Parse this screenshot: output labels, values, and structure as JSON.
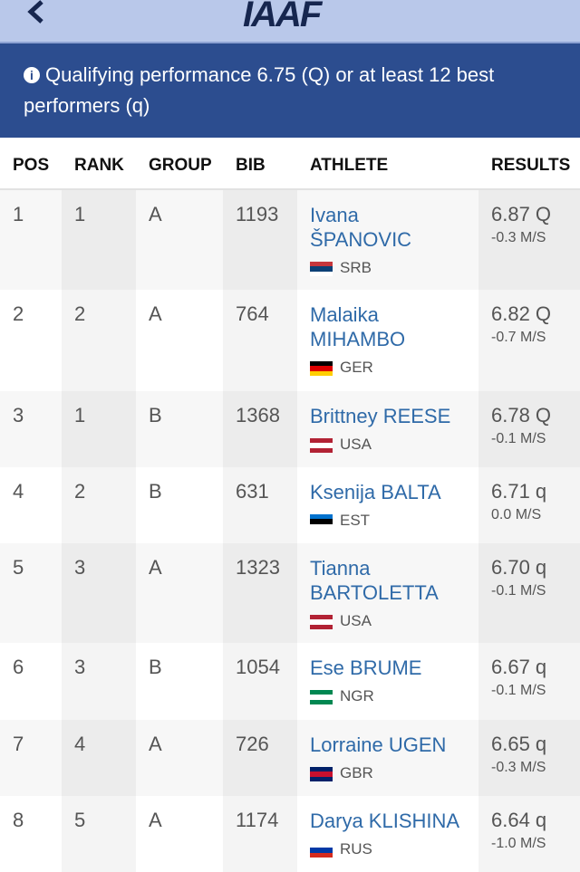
{
  "header": {
    "logo": "IAAF"
  },
  "notice": "Qualifying performance 6.75 (Q) or at least 12 best performers (q)",
  "table": {
    "columns": [
      "POS",
      "RANK",
      "GROUP",
      "BIB",
      "ATHLETE",
      "RESULTS"
    ],
    "rows": [
      {
        "pos": "1",
        "rank": "1",
        "group": "A",
        "bib": "1193",
        "athlete": [
          "Ivana",
          "ŠPANOVIC"
        ],
        "country": "SRB",
        "flag": [
          "#c6363c",
          "#0c4076",
          "#ffffff"
        ],
        "result": "6.87 Q",
        "wind": "-0.3 M/S"
      },
      {
        "pos": "2",
        "rank": "2",
        "group": "A",
        "bib": "764",
        "athlete": [
          "Malaika",
          "MIHAMBO"
        ],
        "country": "GER",
        "flag": [
          "#000000",
          "#dd0000",
          "#ffce00"
        ],
        "result": "6.82 Q",
        "wind": "-0.7 M/S"
      },
      {
        "pos": "3",
        "rank": "1",
        "group": "B",
        "bib": "1368",
        "athlete": [
          "Brittney REESE"
        ],
        "country": "USA",
        "flag": [
          "#b22234",
          "#ffffff",
          "#b22234"
        ],
        "result": "6.78 Q",
        "wind": "-0.1 M/S"
      },
      {
        "pos": "4",
        "rank": "2",
        "group": "B",
        "bib": "631",
        "athlete": [
          "Ksenija BALTA"
        ],
        "country": "EST",
        "flag": [
          "#0072ce",
          "#000000",
          "#ffffff"
        ],
        "result": "6.71 q",
        "wind": "0.0 M/S"
      },
      {
        "pos": "5",
        "rank": "3",
        "group": "A",
        "bib": "1323",
        "athlete": [
          "Tianna",
          "BARTOLETTA"
        ],
        "country": "USA",
        "flag": [
          "#b22234",
          "#ffffff",
          "#b22234"
        ],
        "result": "6.70 q",
        "wind": "-0.1 M/S"
      },
      {
        "pos": "6",
        "rank": "3",
        "group": "B",
        "bib": "1054",
        "athlete": [
          "Ese BRUME"
        ],
        "country": "NGR",
        "flag": [
          "#008751",
          "#ffffff",
          "#008751"
        ],
        "result": "6.67 q",
        "wind": "-0.1 M/S"
      },
      {
        "pos": "7",
        "rank": "4",
        "group": "A",
        "bib": "726",
        "athlete": [
          "Lorraine UGEN"
        ],
        "country": "GBR",
        "flag": [
          "#012169",
          "#c8102e",
          "#012169"
        ],
        "result": "6.65 q",
        "wind": "-0.3 M/S"
      },
      {
        "pos": "8",
        "rank": "5",
        "group": "A",
        "bib": "1174",
        "athlete": [
          "Darya KLISHINA"
        ],
        "country": "RUS",
        "flag": [
          "#ffffff",
          "#0039a6",
          "#d52b1e"
        ],
        "result": "6.64 q",
        "wind": "-1.0 M/S"
      }
    ]
  }
}
